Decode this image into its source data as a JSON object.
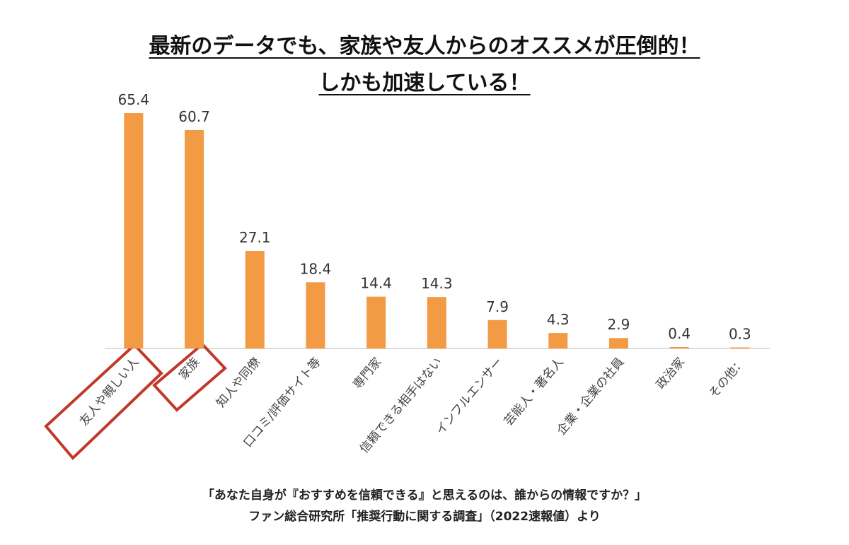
{
  "chart_data": {
    "type": "bar",
    "title": [
      "最新のデータでも、家族や友人からのオススメが圧倒的！",
      "しかも加速している！"
    ],
    "categories": [
      "友人や親しい人",
      "家族",
      "知人や同僚",
      "口コミ/評価サイト等",
      "専門家",
      "信頼できる相手はない",
      "インフルエンサー",
      "芸能人・著名人",
      "企業・企業の社員",
      "政治家",
      "その他："
    ],
    "values": [
      65.4,
      60.7,
      27.1,
      18.4,
      14.4,
      14.3,
      7.9,
      4.3,
      2.9,
      0.4,
      0.3
    ],
    "color": "#f39a45",
    "notes": [
      "「あなた自身が『おすすめを信頼できる』と思えるのは、誰からの情報ですか？」",
      "ファン総合研究所「推奨行動に関する調査」（2022速報値）より"
    ]
  }
}
